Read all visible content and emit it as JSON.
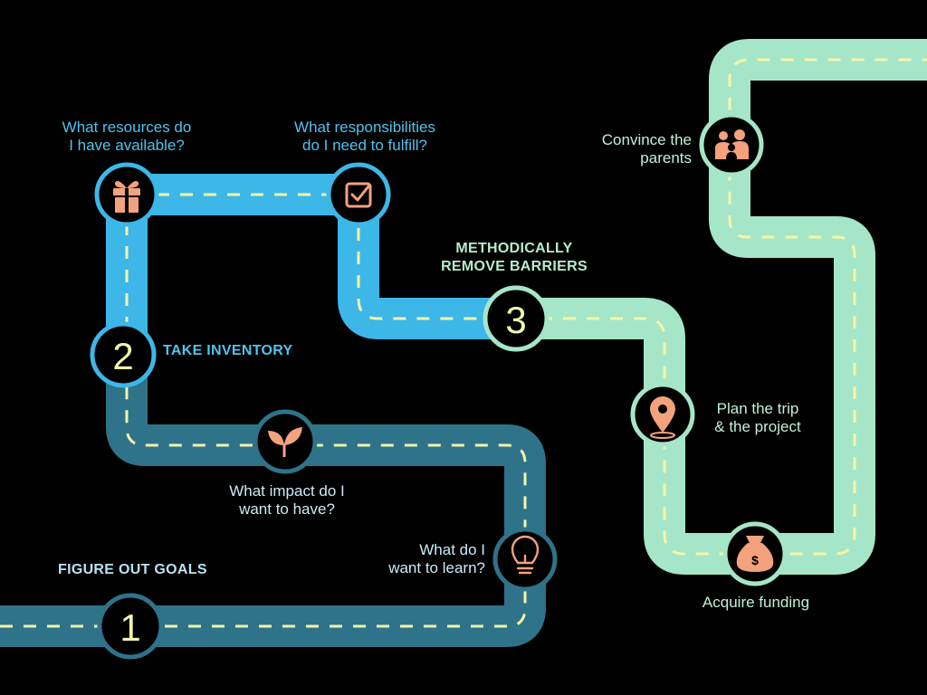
{
  "stages": [
    {
      "number": "1",
      "title": "FIGURE OUT GOALS"
    },
    {
      "number": "2",
      "title": "TAKE INVENTORY"
    },
    {
      "number": "3",
      "title_line1": "METHODICALLY",
      "title_line2": "REMOVE BARRIERS"
    }
  ],
  "steps": {
    "learn": {
      "line1": "What do I",
      "line2": "want to learn?",
      "icon": "lightbulb-icon"
    },
    "impact": {
      "line1": "What impact do I",
      "line2": "want to have?",
      "icon": "sprout-icon"
    },
    "resources": {
      "line1": "What resources do",
      "line2": "I have available?",
      "icon": "gift-icon"
    },
    "responsibilities": {
      "line1": "What responsibilities",
      "line2": "do I need to fulfill?",
      "icon": "checkbox-icon"
    },
    "plan": {
      "line1": "Plan the trip",
      "line2": "& the project",
      "icon": "map-pin-icon"
    },
    "funding": {
      "line1": "Acquire funding",
      "icon": "money-bag-icon"
    },
    "parents": {
      "line1": "Convince the",
      "line2": "parents",
      "icon": "family-icon"
    }
  },
  "colors": {
    "background": "#000000",
    "road_teal": "#2E7389",
    "road_blue": "#3DB6E8",
    "road_mint": "#A6E6C8",
    "dash": "#F4F5A8",
    "icon_accent": "#F4A27E",
    "number_accent": "#F4F5A8"
  }
}
